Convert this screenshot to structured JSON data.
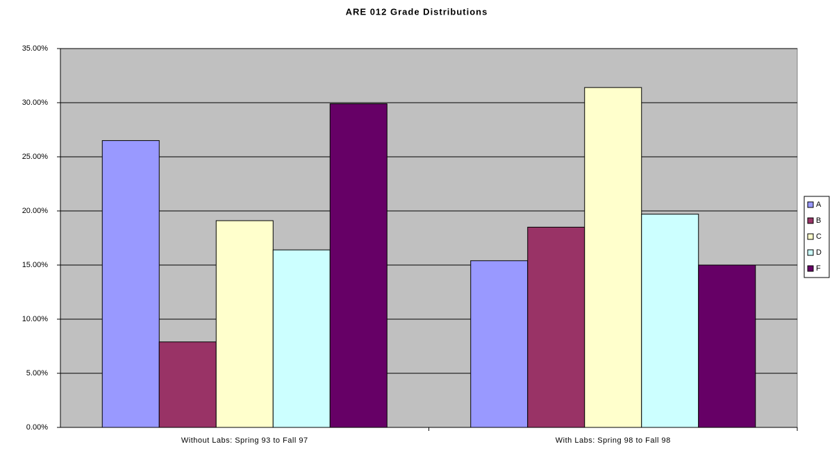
{
  "chart_data": {
    "type": "bar",
    "title": "ARE 012 Grade Distributions",
    "categories": [
      "Without Labs: Spring 93 to Fall 97",
      "With Labs: Spring 98 to Fall 98"
    ],
    "series": [
      {
        "name": "A",
        "color": "#9999ff",
        "values": [
          26.5,
          15.4
        ]
      },
      {
        "name": "B",
        "color": "#993366",
        "values": [
          7.9,
          18.5
        ]
      },
      {
        "name": "C",
        "color": "#ffffcc",
        "values": [
          19.1,
          31.4
        ]
      },
      {
        "name": "D",
        "color": "#ccffff",
        "values": [
          16.4,
          19.7
        ]
      },
      {
        "name": "F",
        "color": "#660066",
        "values": [
          29.9,
          15.0
        ]
      }
    ],
    "ylim": [
      0,
      35
    ],
    "yticks": [
      {
        "value": 0,
        "label": "0.00%"
      },
      {
        "value": 5,
        "label": "5.00%"
      },
      {
        "value": 10,
        "label": "10.00%"
      },
      {
        "value": 15,
        "label": "15.00%"
      },
      {
        "value": 20,
        "label": "20.00%"
      },
      {
        "value": 25,
        "label": "25.00%"
      },
      {
        "value": 30,
        "label": "30.00%"
      },
      {
        "value": 35,
        "label": "35.00%"
      }
    ],
    "grid": true,
    "legend": "right"
  }
}
